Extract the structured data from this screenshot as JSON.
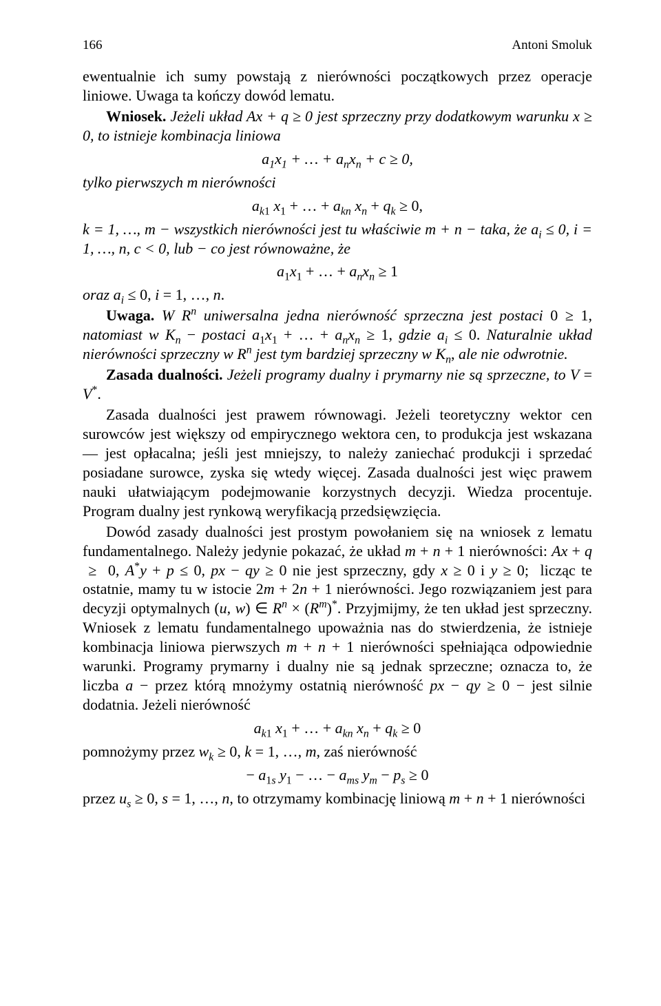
{
  "header": {
    "page_num": "166",
    "author": "Antoni Smoluk"
  },
  "p1": "ewentualnie ich sumy powstają z nierówności początkowych przez operacje liniowe. Uwaga ta kończy dowód lematu.",
  "p2a": "Wniosek. ",
  "p2b": "Jeżeli układ Ax + q ≥ 0 jest sprzeczny przy dodatkowym warunku x ≥ 0, to istnieje kombinacja liniowa",
  "eq1": "a₁x₁ + … + aₙxₙ + c ≥ 0,",
  "p3": "tylko pierwszych m nierówności",
  "eq2": "a_{k1} x₁ + … + a_{kn} xₙ + q_k ≥ 0,",
  "p4": "k = 1, …, m — wszystkich nierówności jest tu właściwie m + n — taka, że aᵢ ≤ 0, i = 1, …, n, c < 0, lub — co jest równoważne, że",
  "eq3": "a₁x₁ + … + aₙxₙ ≥ 1",
  "p5": "oraz aᵢ ≤ 0, i = 1, …, n.",
  "p6a": "Uwaga. ",
  "p6b": "W Rⁿ uniwersalna jedna nierówność sprzeczna jest postaci 0 ≥ 1, natomiast w Kₙ — postaci a₁x₁ + … + aₙxₙ ≥ 1, gdzie aᵢ ≤ 0. Naturalnie układ nierówności sprzeczny w Rⁿ jest tym bardziej sprzeczny w Kₙ, ale nie odwrotnie.",
  "p7a": "Zasada dualności. ",
  "p7b": "Jeżeli programy dualny i prymarny nie są sprzeczne, to V = V*.",
  "p8": "Zasada dualności jest prawem równowagi. Jeżeli teoretyczny wektor cen surowców jest większy od empirycznego wektora cen, to produkcja jest wskazana — jest opłacalna; jeśli jest mniejszy, to należy zaniechać produkcji i sprzedać posiadane surowce, zyska się wtedy więcej. Zasada dualności jest więc prawem nauki ułatwiającym podejmowanie korzystnych decyzji. Wiedza procentuje. Program dualny jest rynkową weryfikacją przedsięwzięcia.",
  "p9": "Dowód zasady dualności jest prostym powołaniem się na wniosek z lematu fundamentalnego. Należy jedynie pokazać, że układ m + n + 1 nierówności: Ax + q ≥ 0, A*y + p ≤ 0, px − qy ≥ 0 nie jest sprzeczny, gdy x ≥ 0 i y ≥ 0; licząc te ostatnie, mamy tu w istocie 2m + 2n + 1 nierówności. Jego rozwiązaniem jest para decyzji optymalnych (u, w) ∈ Rⁿ × (Rᵐ)*. Przyjmijmy, że ten układ jest sprzeczny. Wniosek z lematu fundamentalnego upoważnia nas do stwierdzenia, że istnieje kombinacja liniowa pierwszych m + n + 1 nierówności spełniająca odpowiednie warunki. Programy prymarny i dualny nie są jednak sprzeczne; oznacza to, że liczba a — przez którą mnożymy ostatnią nierówność px − qy ≥ 0 — jest silnie dodatnia. Jeżeli nierówność",
  "eq4": "a_{k1} x₁ + … + a_{kn} xₙ + q_k ≥ 0",
  "p10": "pomnożymy przez w_k ≥ 0, k = 1, …, m, zaś nierówność",
  "eq5": "− a_{1s} y₁ − … − a_{ms} yₘ − pₛ ≥ 0",
  "p11": "przez uₛ ≥ 0, s = 1, …, n, to otrzymamy kombinację liniową m + n + 1 nierówności"
}
